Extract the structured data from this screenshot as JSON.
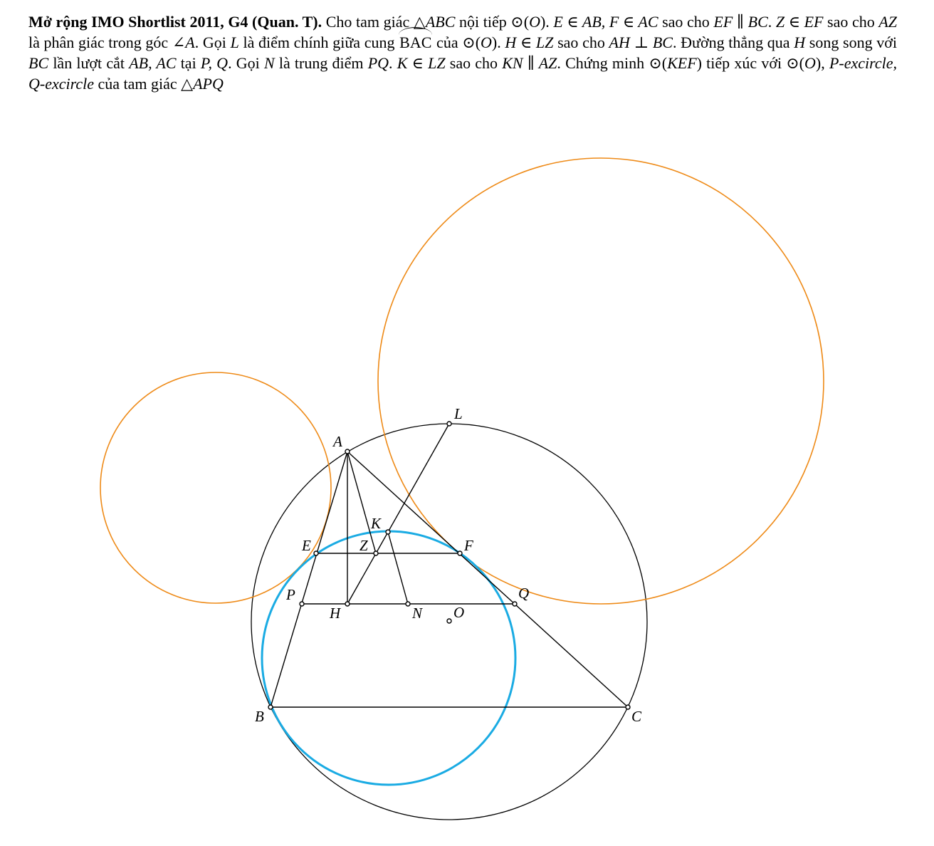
{
  "problem": {
    "title": "Mở rộng IMO Shortlist 2011, G4 (Quan. T).",
    "s1": "Cho tam giác △",
    "m1": "ABC",
    "s2": " nội tiếp ⊙(",
    "m2": "O",
    "s3": "). ",
    "m3": "E ∈ AB, F ∈ AC",
    "s4": " sao cho ",
    "m4": "EF ∥ BC",
    "s5": ". ",
    "m5": "Z ∈ EF",
    "s6": " sao cho ",
    "m6": "AZ",
    "s7": " là phân giác trong góc ∠",
    "m7": "A",
    "s8": ". Gọi ",
    "m8": "L",
    "s9": " là điểm chính giữa cung ",
    "arc": "BAC",
    "s10": " của ⊙(",
    "m10": "O",
    "s11": "). ",
    "m11": "H ∈ LZ",
    "s12": " sao cho ",
    "m12": "AH ⊥ BC",
    "s13": ". Đường thẳng qua ",
    "m13": "H",
    "s14": " song song với ",
    "m14": "BC",
    "s15": " lần lượt cắt ",
    "m15": "AB, AC",
    "s16": " tại ",
    "m16": "P, Q",
    "s17": ". Gọi ",
    "m17": "N",
    "s18": " là trung điểm ",
    "m18": "PQ",
    "s19": ". ",
    "m19": "K ∈ LZ",
    "s20": " sao cho ",
    "m20": "KN ∥ AZ",
    "s21": ". Chứng minh ⊙(",
    "m21": "KEF",
    "s22": ") tiếp xúc với ⊙(",
    "m22": "O",
    "s23": "), ",
    "m23": "P-excircle, Q-excircle",
    "s24": " của tam giác △",
    "m24": "APQ"
  },
  "figure": {
    "points": [
      {
        "label": "A"
      },
      {
        "label": "B"
      },
      {
        "label": "C"
      },
      {
        "label": "L"
      },
      {
        "label": "K"
      },
      {
        "label": "E"
      },
      {
        "label": "Z"
      },
      {
        "label": "F"
      },
      {
        "label": "P"
      },
      {
        "label": "H"
      },
      {
        "label": "N"
      },
      {
        "label": "O"
      },
      {
        "label": "Q"
      }
    ],
    "colors": {
      "circumcircle": "#000000",
      "kef_circle": "#1aabe3",
      "excircles": "#ee8a17",
      "segments": "#000000"
    }
  }
}
